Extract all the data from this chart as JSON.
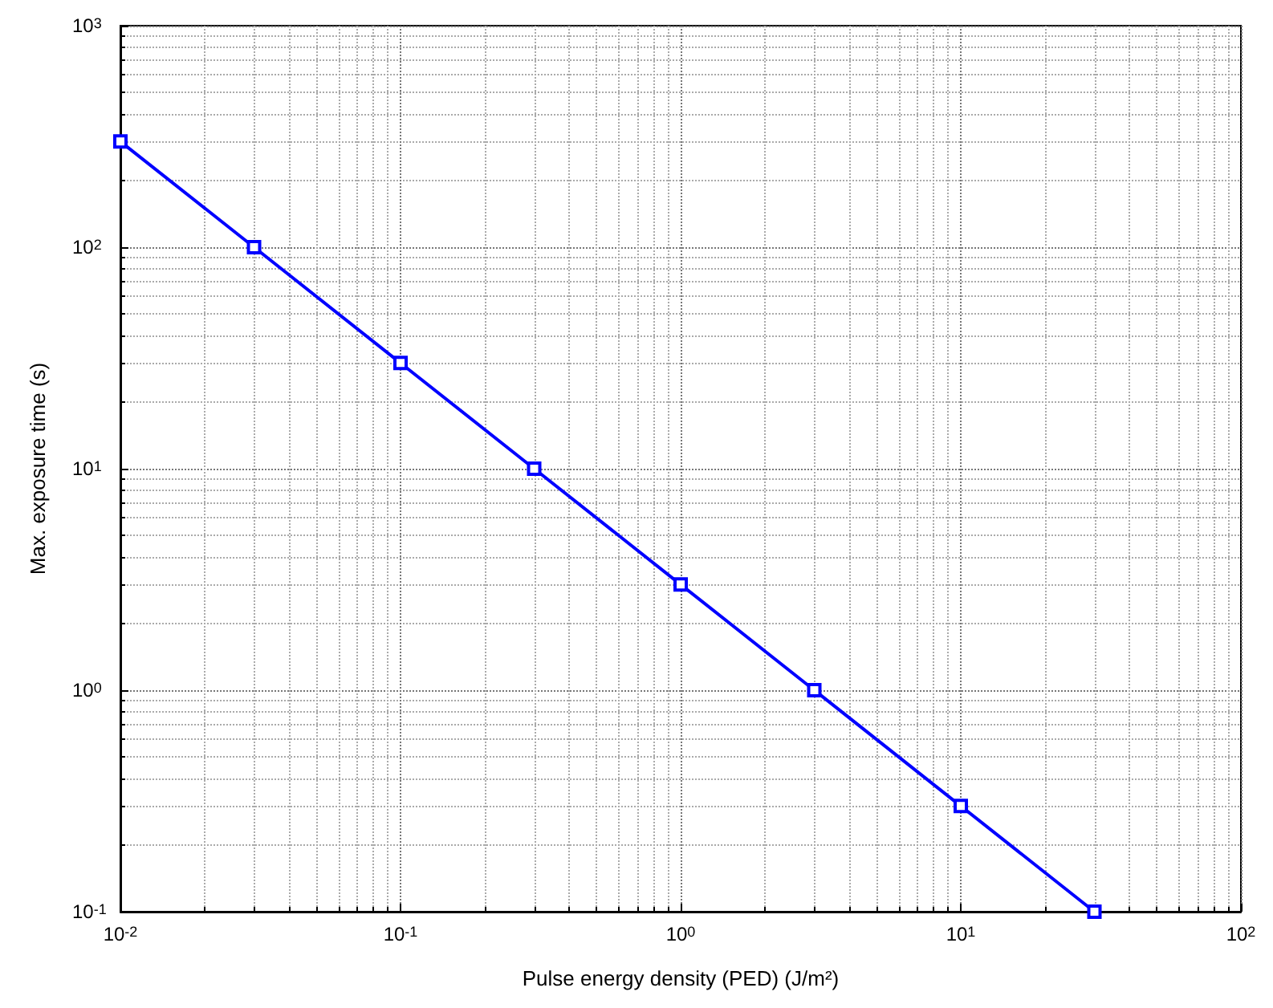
{
  "chart_data": {
    "type": "line",
    "xlabel": "Pulse energy density (PED) (J/m²)",
    "ylabel": "Max. exposure time (s)",
    "x": [
      0.01,
      0.03,
      0.1,
      0.3,
      1,
      3,
      10,
      30
    ],
    "series": [
      {
        "color": "#0000ff",
        "values": [
          300,
          100,
          30,
          10,
          3,
          1,
          0.3,
          0.1
        ]
      }
    ],
    "log": "xy",
    "xlim": [
      0.01,
      100
    ],
    "ylim": [
      0.1,
      1000
    ],
    "xticks": [
      {
        "value": 0.01,
        "label": "10$^{-2}$"
      },
      {
        "value": 0.1,
        "label": "10$^{-1}$"
      },
      {
        "value": 1,
        "label": "10$^{0}$"
      },
      {
        "value": 10,
        "label": "10$^{1}$"
      },
      {
        "value": 100,
        "label": "10$^{2}$"
      }
    ],
    "yticks": [
      {
        "value": 0.1,
        "label": "10$^{-1}$"
      },
      {
        "value": 1,
        "label": "10$^{0}$"
      },
      {
        "value": 10,
        "label": "10$^{1}$"
      },
      {
        "value": 100,
        "label": "10$^{2}$"
      },
      {
        "value": 1000,
        "label": "10$^{3}$"
      }
    ],
    "grid": true,
    "marker": "square",
    "line_style": "solid"
  }
}
